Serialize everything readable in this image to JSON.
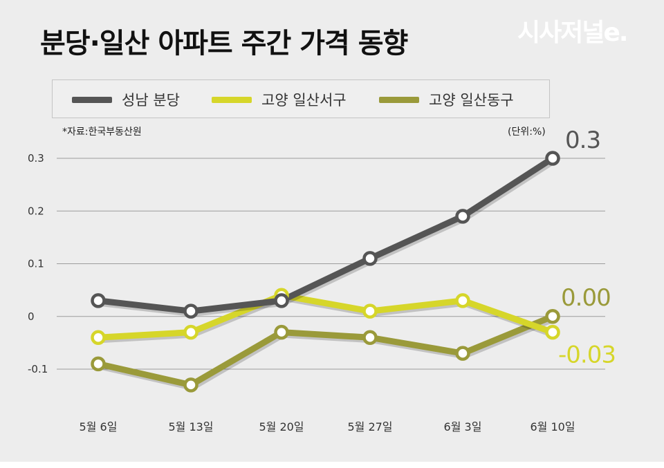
{
  "header": {
    "title": "분당·일산 아파트 주간 가격 동향",
    "brand": "시사저널e."
  },
  "source": "*자료:한국부동산원",
  "unit": "(단위:%)",
  "legend": [
    {
      "label": "성남 분당",
      "color": "#555555"
    },
    {
      "label": "고양 일산서구",
      "color": "#d6d62a"
    },
    {
      "label": "고양 일산동구",
      "color": "#9a9a3a"
    }
  ],
  "chart_data": {
    "type": "line",
    "categories": [
      "5월 6일",
      "5월 13일",
      "5월 20일",
      "5월 27일",
      "6월 3일",
      "6월 10일"
    ],
    "ylim": [
      -0.1,
      0.3
    ],
    "yticks": [
      "0.3",
      "0.2",
      "0.1",
      "0",
      "-0.1"
    ],
    "grid": true,
    "series": [
      {
        "name": "성남 분당",
        "color": "#555555",
        "values": [
          0.03,
          0.01,
          0.03,
          0.11,
          0.19,
          0.3
        ]
      },
      {
        "name": "고양 일산서구",
        "color": "#d6d62a",
        "values": [
          -0.04,
          -0.03,
          0.04,
          0.01,
          0.03,
          -0.03
        ]
      },
      {
        "name": "고양 일산동구",
        "color": "#9a9a3a",
        "values": [
          -0.09,
          -0.13,
          -0.03,
          -0.04,
          -0.07,
          0.0
        ]
      }
    ],
    "annotations": [
      {
        "series": "성남 분당",
        "text": "0.3",
        "color": "#555555"
      },
      {
        "series": "고양 일산동구",
        "text": "0.00",
        "color": "#9a9a3a"
      },
      {
        "series": "고양 일산서구",
        "text": "-0.03",
        "color": "#d6d62a"
      }
    ]
  }
}
